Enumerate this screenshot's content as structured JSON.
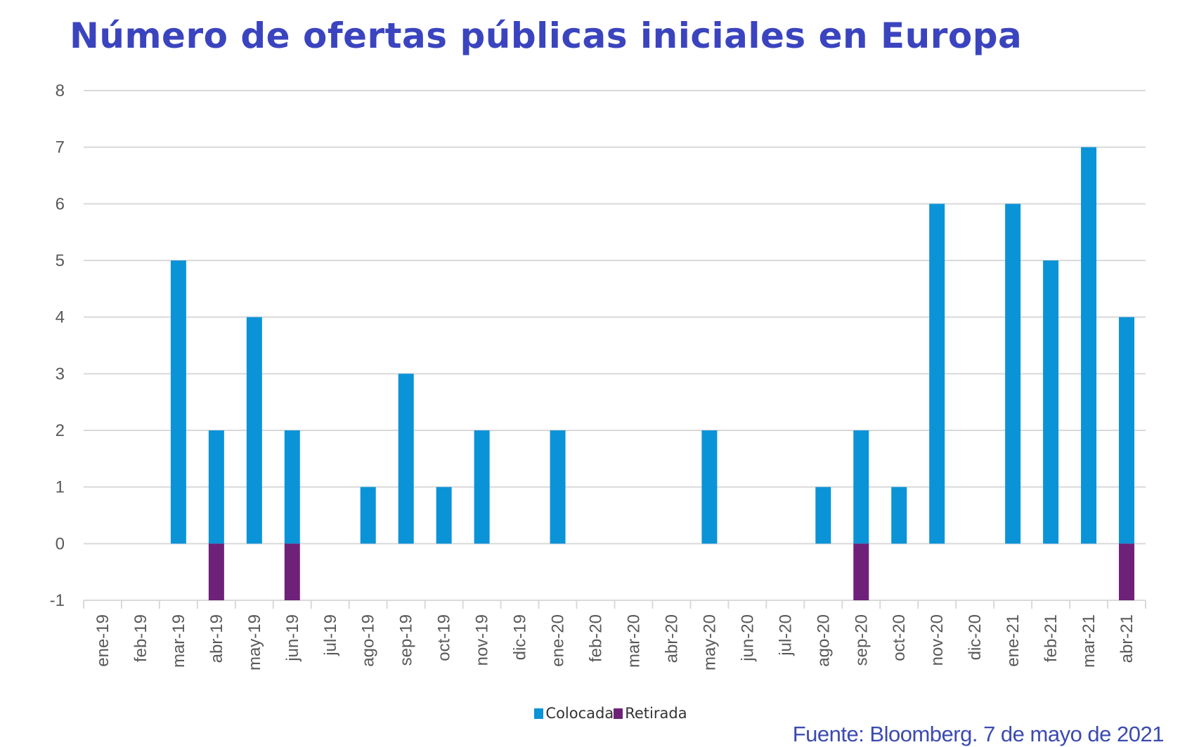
{
  "chart_data": {
    "type": "bar",
    "title": "Número de ofertas públicas iniciales en Europa",
    "source": "Fuente: Bloomberg. 7 de mayo de 2021",
    "categories": [
      "ene-19",
      "feb-19",
      "mar-19",
      "abr-19",
      "may-19",
      "jun-19",
      "jul-19",
      "ago-19",
      "sep-19",
      "oct-19",
      "nov-19",
      "dic-19",
      "ene-20",
      "feb-20",
      "mar-20",
      "abr-20",
      "may-20",
      "jun-20",
      "jul-20",
      "ago-20",
      "sep-20",
      "oct-20",
      "nov-20",
      "dic-20",
      "ene-21",
      "feb-21",
      "mar-21",
      "abr-21"
    ],
    "series": [
      {
        "name": "Colocada",
        "color": "#0b93d8",
        "values": [
          0,
          0,
          5,
          2,
          4,
          2,
          0,
          1,
          3,
          1,
          2,
          0,
          2,
          0,
          0,
          0,
          2,
          0,
          0,
          1,
          2,
          1,
          6,
          0,
          6,
          5,
          7,
          4
        ]
      },
      {
        "name": "Retirada",
        "color": "#6e2178",
        "values": [
          0,
          0,
          0,
          -1,
          0,
          -1,
          0,
          0,
          0,
          0,
          0,
          0,
          0,
          0,
          0,
          0,
          0,
          0,
          0,
          0,
          -1,
          0,
          0,
          0,
          0,
          0,
          0,
          -1
        ]
      }
    ],
    "ylim": [
      -1,
      8
    ],
    "yticks": [
      -1,
      0,
      1,
      2,
      3,
      4,
      5,
      6,
      7,
      8
    ],
    "grid": true,
    "legend": "bottom-center",
    "xlabel": "",
    "ylabel": ""
  }
}
